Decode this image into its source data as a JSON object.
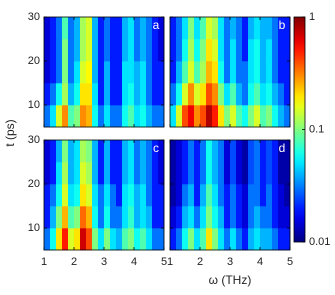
{
  "chart_data": {
    "type": "heatmap-grid",
    "xlabel": "ω (THz)",
    "ylabel": "t (ps)",
    "xlim": [
      1,
      5
    ],
    "ylim": [
      5,
      30
    ],
    "xticks": [
      1,
      2,
      3,
      4,
      5
    ],
    "yticks": [
      10,
      20,
      30
    ],
    "xbins": [
      1,
      1.2,
      1.4,
      1.6,
      1.8,
      2,
      2.2,
      2.4,
      2.6,
      2.8,
      3,
      3.2,
      3.4,
      3.6,
      3.8,
      4,
      4.2,
      4.4,
      4.6,
      4.8,
      5
    ],
    "ybins": [
      5,
      10,
      15,
      20,
      25,
      30
    ],
    "colorbar": {
      "scale": "log",
      "colormap": "jet",
      "lim": [
        0.01,
        1
      ],
      "ticks": [
        0.01,
        0.1,
        1
      ]
    },
    "panels": [
      {
        "label": "a",
        "values": [
          [
            0.03,
            0.05,
            0.15,
            0.3,
            0.08,
            0.1,
            0.3,
            0.25,
            0.06,
            0.03,
            0.05,
            0.03,
            0.03,
            0.06,
            0.08,
            0.05,
            0.06,
            0.04,
            0.03,
            0.03
          ],
          [
            0.02,
            0.03,
            0.06,
            0.12,
            0.04,
            0.06,
            0.2,
            0.2,
            0.05,
            0.02,
            0.04,
            0.02,
            0.02,
            0.05,
            0.06,
            0.04,
            0.05,
            0.03,
            0.02,
            0.02
          ],
          [
            0.015,
            0.02,
            0.03,
            0.1,
            0.03,
            0.05,
            0.15,
            0.18,
            0.04,
            0.02,
            0.04,
            0.02,
            0.02,
            0.05,
            0.05,
            0.04,
            0.05,
            0.03,
            0.02,
            0.02
          ],
          [
            0.015,
            0.02,
            0.03,
            0.1,
            0.03,
            0.04,
            0.12,
            0.15,
            0.04,
            0.02,
            0.03,
            0.02,
            0.02,
            0.04,
            0.05,
            0.03,
            0.04,
            0.03,
            0.02,
            0.015
          ],
          [
            0.015,
            0.02,
            0.03,
            0.08,
            0.03,
            0.04,
            0.12,
            0.15,
            0.04,
            0.02,
            0.03,
            0.02,
            0.02,
            0.04,
            0.05,
            0.03,
            0.04,
            0.03,
            0.02,
            0.015
          ]
        ]
      },
      {
        "label": "b",
        "values": [
          [
            0.05,
            0.15,
            0.4,
            0.6,
            0.3,
            0.4,
            0.8,
            0.5,
            0.2,
            0.1,
            0.15,
            0.08,
            0.06,
            0.1,
            0.15,
            0.08,
            0.1,
            0.06,
            0.04,
            0.03
          ],
          [
            0.03,
            0.06,
            0.15,
            0.3,
            0.15,
            0.2,
            0.4,
            0.3,
            0.1,
            0.05,
            0.08,
            0.04,
            0.03,
            0.06,
            0.08,
            0.05,
            0.06,
            0.04,
            0.03,
            0.02
          ],
          [
            0.02,
            0.04,
            0.08,
            0.15,
            0.08,
            0.12,
            0.25,
            0.2,
            0.06,
            0.03,
            0.05,
            0.03,
            0.03,
            0.05,
            0.06,
            0.04,
            0.05,
            0.03,
            0.02,
            0.02
          ],
          [
            0.02,
            0.03,
            0.06,
            0.12,
            0.06,
            0.1,
            0.2,
            0.15,
            0.05,
            0.03,
            0.05,
            0.03,
            0.02,
            0.05,
            0.06,
            0.04,
            0.05,
            0.03,
            0.02,
            0.02
          ],
          [
            0.02,
            0.03,
            0.05,
            0.1,
            0.05,
            0.08,
            0.15,
            0.12,
            0.05,
            0.03,
            0.04,
            0.03,
            0.02,
            0.04,
            0.05,
            0.04,
            0.04,
            0.03,
            0.02,
            0.02
          ]
        ]
      },
      {
        "label": "c",
        "values": [
          [
            0.03,
            0.06,
            0.2,
            0.5,
            0.15,
            0.2,
            0.7,
            0.4,
            0.1,
            0.05,
            0.1,
            0.05,
            0.04,
            0.08,
            0.1,
            0.06,
            0.08,
            0.05,
            0.03,
            0.03
          ],
          [
            0.02,
            0.04,
            0.1,
            0.25,
            0.08,
            0.1,
            0.35,
            0.25,
            0.06,
            0.03,
            0.06,
            0.03,
            0.03,
            0.05,
            0.07,
            0.04,
            0.05,
            0.04,
            0.02,
            0.02
          ],
          [
            0.02,
            0.03,
            0.06,
            0.15,
            0.05,
            0.06,
            0.2,
            0.15,
            0.05,
            0.03,
            0.05,
            0.03,
            0.02,
            0.05,
            0.06,
            0.04,
            0.05,
            0.03,
            0.02,
            0.02
          ],
          [
            0.015,
            0.02,
            0.05,
            0.12,
            0.04,
            0.05,
            0.15,
            0.12,
            0.04,
            0.02,
            0.04,
            0.02,
            0.02,
            0.04,
            0.05,
            0.03,
            0.04,
            0.03,
            0.02,
            0.015
          ],
          [
            0.015,
            0.02,
            0.04,
            0.1,
            0.04,
            0.05,
            0.12,
            0.1,
            0.04,
            0.02,
            0.04,
            0.02,
            0.02,
            0.04,
            0.05,
            0.03,
            0.04,
            0.03,
            0.02,
            0.015
          ]
        ]
      },
      {
        "label": "d",
        "values": [
          [
            0.02,
            0.03,
            0.06,
            0.1,
            0.05,
            0.08,
            0.2,
            0.1,
            0.05,
            0.03,
            0.05,
            0.03,
            0.02,
            0.04,
            0.05,
            0.04,
            0.04,
            0.03,
            0.02,
            0.02
          ],
          [
            0.015,
            0.02,
            0.04,
            0.05,
            0.03,
            0.05,
            0.1,
            0.06,
            0.04,
            0.02,
            0.03,
            0.02,
            0.015,
            0.03,
            0.04,
            0.03,
            0.03,
            0.02,
            0.015,
            0.015
          ],
          [
            0.012,
            0.015,
            0.03,
            0.04,
            0.02,
            0.04,
            0.08,
            0.05,
            0.03,
            0.02,
            0.03,
            0.02,
            0.015,
            0.03,
            0.03,
            0.02,
            0.03,
            0.02,
            0.015,
            0.012
          ],
          [
            0.012,
            0.015,
            0.02,
            0.03,
            0.02,
            0.03,
            0.06,
            0.04,
            0.03,
            0.015,
            0.025,
            0.015,
            0.012,
            0.025,
            0.03,
            0.02,
            0.025,
            0.02,
            0.012,
            0.012
          ],
          [
            0.012,
            0.015,
            0.02,
            0.03,
            0.02,
            0.03,
            0.06,
            0.04,
            0.03,
            0.015,
            0.025,
            0.015,
            0.012,
            0.025,
            0.03,
            0.02,
            0.025,
            0.02,
            0.012,
            0.012
          ]
        ]
      }
    ]
  }
}
